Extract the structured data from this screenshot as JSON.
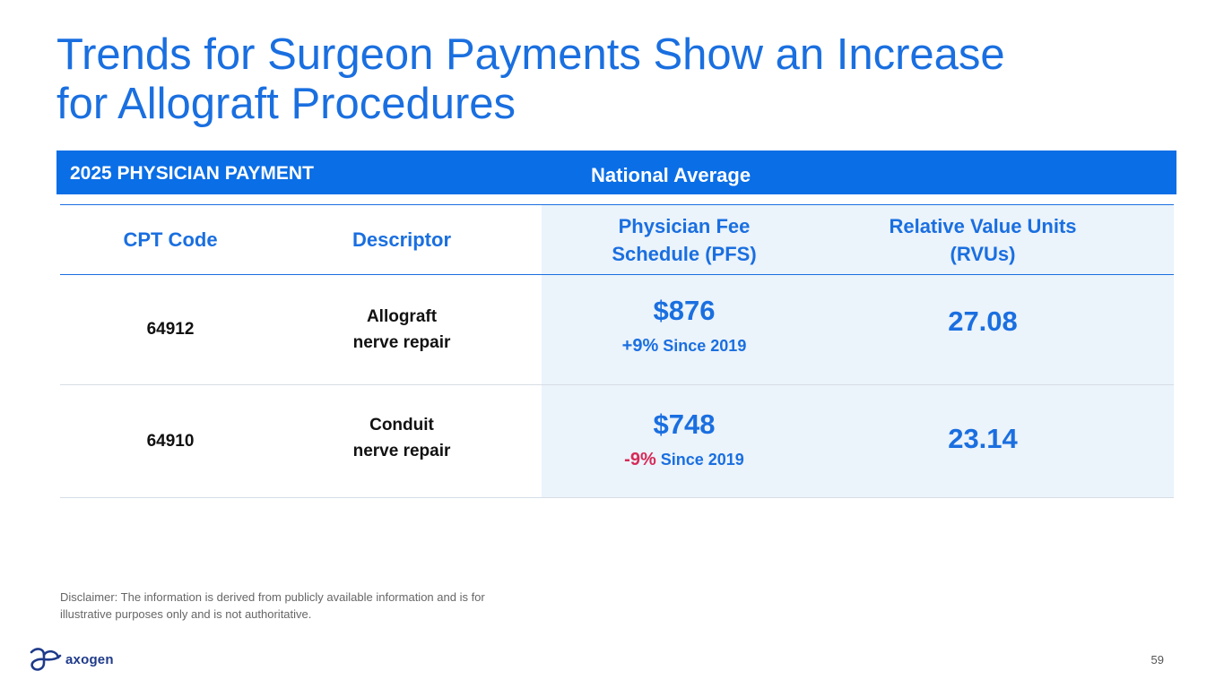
{
  "title": {
    "line1": "Trends for Surgeon Payments Show an Increase",
    "line2": "for Allograft Procedures"
  },
  "header": {
    "left": "2025 PHYSICIAN PAYMENT",
    "middle": "National Average"
  },
  "columns": {
    "cpt": "CPT Code",
    "descriptor": "Descriptor",
    "pfs_line1": "Physician Fee",
    "pfs_line2": "Schedule (PFS)",
    "rvu_line1": "Relative Value Units",
    "rvu_line2": "(RVUs)"
  },
  "rows": [
    {
      "code": "64912",
      "desc_line1": "Allograft",
      "desc_line2": "nerve repair",
      "price": "$876",
      "change_pct": "+9%",
      "change_label": "Since 2019",
      "rvu": "27.08"
    },
    {
      "code": "64910",
      "desc_line1": "Conduit",
      "desc_line2": "nerve repair",
      "price": "$748",
      "change_pct": "-9%",
      "change_label": "Since 2019",
      "rvu": "23.14"
    }
  ],
  "disclaimer": "Disclaimer: The information is derived from publicly available information and is for illustrative purposes only and is not authoritative.",
  "logo": {
    "icon": "axogen-logo-icon",
    "text": "axogen"
  },
  "page_number": "59",
  "colors": {
    "accent": "#1a6fe0",
    "header_bg": "#0a6ee6",
    "shade_bg": "#ebf3fb",
    "negative": "#d62a57",
    "logo": "#1e3a8a"
  }
}
